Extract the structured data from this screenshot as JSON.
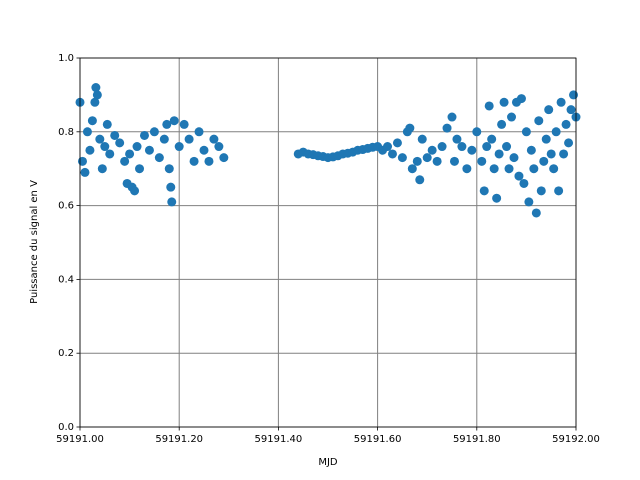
{
  "chart_data": {
    "type": "scatter",
    "xlabel": "MJD",
    "ylabel": "Puissance du signal en V",
    "color": "#1f77b4",
    "grid": true,
    "xlim": [
      59191.0,
      59192.0
    ],
    "xticks": [
      {
        "value": 59191.0,
        "label": "59191.00"
      },
      {
        "value": 59191.2,
        "label": "59191.20"
      },
      {
        "value": 59191.4,
        "label": "59191.40"
      },
      {
        "value": 59191.6,
        "label": "59191.60"
      },
      {
        "value": 59191.8,
        "label": "59191.80"
      },
      {
        "value": 59192.0,
        "label": "59192.00"
      }
    ],
    "ylim": [
      0,
      1
    ],
    "yticks": [
      {
        "value": 0,
        "label": "0.0"
      },
      0.2,
      0.4,
      0.6,
      0.8,
      {
        "value": 1,
        "label": "1.0"
      }
    ],
    "x": [
      59191.0,
      59191.005,
      59191.01,
      59191.015,
      59191.02,
      59191.025,
      59191.03,
      59191.032,
      59191.035,
      59191.04,
      59191.045,
      59191.05,
      59191.055,
      59191.06,
      59191.07,
      59191.08,
      59191.09,
      59191.095,
      59191.1,
      59191.105,
      59191.11,
      59191.115,
      59191.12,
      59191.13,
      59191.14,
      59191.15,
      59191.16,
      59191.17,
      59191.175,
      59191.18,
      59191.183,
      59191.185,
      59191.19,
      59191.2,
      59191.21,
      59191.22,
      59191.23,
      59191.24,
      59191.25,
      59191.26,
      59191.27,
      59191.28,
      59191.29,
      59191.44,
      59191.45,
      59191.46,
      59191.47,
      59191.48,
      59191.49,
      59191.5,
      59191.51,
      59191.52,
      59191.53,
      59191.54,
      59191.55,
      59191.56,
      59191.57,
      59191.58,
      59191.59,
      59191.6,
      59191.61,
      59191.62,
      59191.63,
      59191.64,
      59191.65,
      59191.66,
      59191.665,
      59191.67,
      59191.68,
      59191.685,
      59191.69,
      59191.7,
      59191.71,
      59191.72,
      59191.73,
      59191.74,
      59191.75,
      59191.755,
      59191.76,
      59191.77,
      59191.78,
      59191.79,
      59191.8,
      59191.81,
      59191.815,
      59191.82,
      59191.825,
      59191.83,
      59191.835,
      59191.84,
      59191.845,
      59191.85,
      59191.855,
      59191.86,
      59191.865,
      59191.87,
      59191.875,
      59191.88,
      59191.885,
      59191.89,
      59191.895,
      59191.9,
      59191.905,
      59191.91,
      59191.915,
      59191.92,
      59191.925,
      59191.93,
      59191.935,
      59191.94,
      59191.945,
      59191.95,
      59191.955,
      59191.96,
      59191.965,
      59191.97,
      59191.975,
      59191.98,
      59191.985,
      59191.99,
      59191.995,
      59192.0
    ],
    "values": [
      0.88,
      0.72,
      0.69,
      0.8,
      0.75,
      0.83,
      0.88,
      0.92,
      0.9,
      0.78,
      0.7,
      0.76,
      0.82,
      0.74,
      0.79,
      0.77,
      0.72,
      0.66,
      0.74,
      0.65,
      0.64,
      0.76,
      0.7,
      0.79,
      0.75,
      0.8,
      0.73,
      0.78,
      0.82,
      0.7,
      0.65,
      0.61,
      0.83,
      0.76,
      0.82,
      0.78,
      0.72,
      0.8,
      0.75,
      0.72,
      0.78,
      0.76,
      0.73,
      0.74,
      0.745,
      0.74,
      0.738,
      0.735,
      0.733,
      0.73,
      0.732,
      0.735,
      0.74,
      0.742,
      0.745,
      0.75,
      0.752,
      0.755,
      0.758,
      0.76,
      0.75,
      0.76,
      0.74,
      0.77,
      0.73,
      0.8,
      0.81,
      0.7,
      0.72,
      0.67,
      0.78,
      0.73,
      0.75,
      0.72,
      0.76,
      0.81,
      0.84,
      0.72,
      0.78,
      0.76,
      0.7,
      0.75,
      0.8,
      0.72,
      0.64,
      0.76,
      0.87,
      0.78,
      0.7,
      0.62,
      0.74,
      0.82,
      0.88,
      0.76,
      0.7,
      0.84,
      0.73,
      0.88,
      0.68,
      0.89,
      0.66,
      0.8,
      0.61,
      0.75,
      0.7,
      0.58,
      0.83,
      0.64,
      0.72,
      0.78,
      0.86,
      0.74,
      0.7,
      0.8,
      0.64,
      0.88,
      0.74,
      0.82,
      0.77,
      0.86,
      0.9,
      0.84
    ]
  }
}
